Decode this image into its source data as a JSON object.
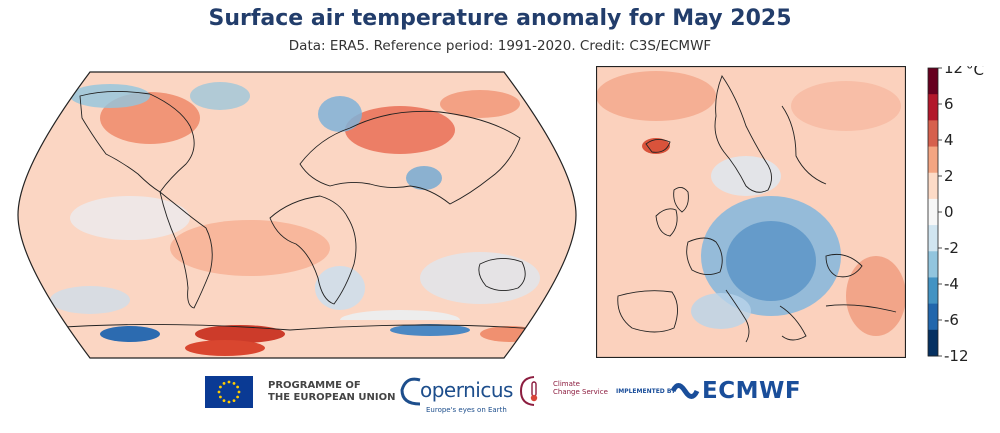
{
  "title": "Surface air temperature anomaly for May 2025",
  "subtitle": "Data: ERA5.  Reference period: 1991-2020.  Credit: C3S/ECMWF",
  "colorbar": {
    "labels": [
      "12",
      "6",
      "4",
      "2",
      "0",
      "-2",
      "-4",
      "-6",
      "-12"
    ],
    "unit": "°C",
    "colors": [
      "#67001f",
      "#b2182b",
      "#d6604d",
      "#f4a582",
      "#fddbc7",
      "#f7f7f7",
      "#d1e5f0",
      "#92c5de",
      "#4393c3",
      "#2166ac",
      "#053061"
    ]
  },
  "maps": {
    "world": {
      "name": "Global map"
    },
    "europe": {
      "name": "Europe map"
    }
  },
  "logos": {
    "eu_line1": "PROGRAMME OF",
    "eu_line2": "THE EUROPEAN UNION",
    "copernicus": "opernicus",
    "copernicus_tagline": "Europe's eyes on Earth",
    "c3s_line1": "Climate",
    "c3s_line2": "Change Service",
    "implemented_by": "IMPLEMENTED BY",
    "ecmwf": "ECMWF"
  }
}
